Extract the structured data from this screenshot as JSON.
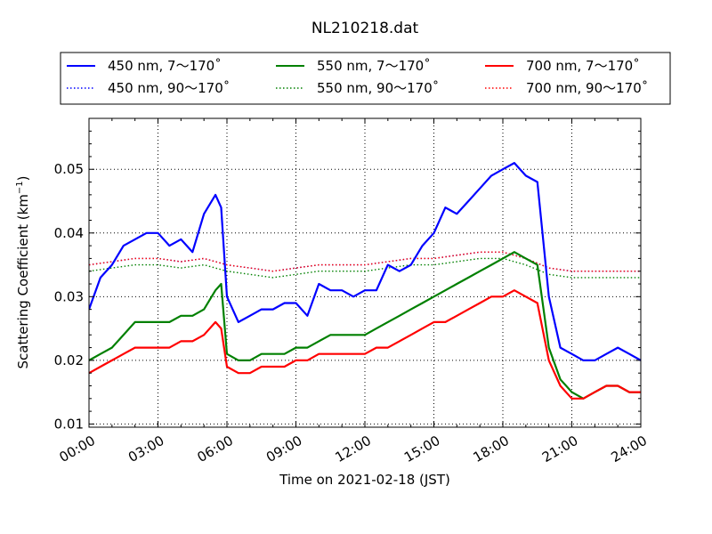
{
  "chart_data": {
    "type": "line",
    "title": "NL210218.dat",
    "xlabel": "Time on 2021-02-18 (JST)",
    "ylabel_main": "Scattering Coefficient (km",
    "ylabel_sup": "−1",
    "ylabel_close": ")",
    "xlim_hours": [
      0,
      24
    ],
    "ylim": [
      0.0095,
      0.058
    ],
    "x_ticks": [
      {
        "hour": 0,
        "label": "00:00"
      },
      {
        "hour": 3,
        "label": "03:00"
      },
      {
        "hour": 6,
        "label": "06:00"
      },
      {
        "hour": 9,
        "label": "09:00"
      },
      {
        "hour": 12,
        "label": "12:00"
      },
      {
        "hour": 15,
        "label": "15:00"
      },
      {
        "hour": 18,
        "label": "18:00"
      },
      {
        "hour": 21,
        "label": "21:00"
      },
      {
        "hour": 24,
        "label": "24:00"
      }
    ],
    "y_ticks": [
      {
        "value": 0.01,
        "label": "0.01"
      },
      {
        "value": 0.02,
        "label": "0.02"
      },
      {
        "value": 0.03,
        "label": "0.03"
      },
      {
        "value": 0.04,
        "label": "0.04"
      },
      {
        "value": 0.05,
        "label": "0.05"
      }
    ],
    "grid": true,
    "legend_position": "top",
    "legend_columns": 3,
    "series": [
      {
        "name": "450 nm, 7～170˚",
        "color": "#0000ff",
        "style": "solid",
        "x": [
          0,
          0.5,
          1,
          1.5,
          2,
          2.5,
          3,
          3.5,
          4,
          4.5,
          5,
          5.5,
          5.75,
          6,
          6.5,
          7,
          7.5,
          8,
          8.5,
          9,
          9.5,
          10,
          10.5,
          11,
          11.5,
          12,
          12.5,
          13,
          13.5,
          14,
          14.5,
          15,
          15.5,
          16,
          16.5,
          17,
          17.5,
          18,
          18.5,
          19,
          19.5,
          20,
          20.5,
          21,
          21.5,
          22,
          22.5,
          23,
          23.5,
          24
        ],
        "y": [
          0.028,
          0.033,
          0.035,
          0.038,
          0.039,
          0.04,
          0.04,
          0.038,
          0.039,
          0.037,
          0.043,
          0.046,
          0.044,
          0.03,
          0.026,
          0.027,
          0.028,
          0.028,
          0.029,
          0.029,
          0.027,
          0.032,
          0.031,
          0.031,
          0.03,
          0.031,
          0.031,
          0.035,
          0.034,
          0.035,
          0.038,
          0.04,
          0.044,
          0.043,
          0.045,
          0.047,
          0.049,
          0.05,
          0.051,
          0.049,
          0.048,
          0.03,
          0.022,
          0.021,
          0.02,
          0.02,
          0.021,
          0.022,
          0.021,
          0.02
        ]
      },
      {
        "name": "450 nm, 90～170˚",
        "color": "#0000ff",
        "style": "dotted",
        "x": [
          0,
          1,
          2,
          3,
          4,
          5,
          6,
          7,
          8,
          9,
          10,
          11,
          12,
          13,
          14,
          15,
          16,
          17,
          18,
          19,
          20,
          21,
          22,
          23,
          24
        ],
        "y": [
          0.035,
          0.0355,
          0.036,
          0.036,
          0.0355,
          0.036,
          0.035,
          0.0345,
          0.034,
          0.0345,
          0.035,
          0.035,
          0.035,
          0.0355,
          0.036,
          0.036,
          0.0365,
          0.037,
          0.037,
          0.036,
          0.0345,
          0.034,
          0.034,
          0.034,
          0.034
        ]
      },
      {
        "name": "550 nm, 7～170˚",
        "color": "#008000",
        "style": "solid",
        "x": [
          0,
          0.5,
          1,
          1.5,
          2,
          2.5,
          3,
          3.5,
          4,
          4.5,
          5,
          5.5,
          5.75,
          6,
          6.5,
          7,
          7.5,
          8,
          8.5,
          9,
          9.5,
          10,
          10.5,
          11,
          11.5,
          12,
          12.5,
          13,
          13.5,
          14,
          14.5,
          15,
          15.5,
          16,
          16.5,
          17,
          17.5,
          18,
          18.5,
          19,
          19.5,
          20,
          20.5,
          21,
          21.5,
          22,
          22.5,
          23,
          23.5,
          24
        ],
        "y": [
          0.02,
          0.021,
          0.022,
          0.024,
          0.026,
          0.026,
          0.026,
          0.026,
          0.027,
          0.027,
          0.028,
          0.031,
          0.032,
          0.021,
          0.02,
          0.02,
          0.021,
          0.021,
          0.021,
          0.022,
          0.022,
          0.023,
          0.024,
          0.024,
          0.024,
          0.024,
          0.025,
          0.026,
          0.027,
          0.028,
          0.029,
          0.03,
          0.031,
          0.032,
          0.033,
          0.034,
          0.035,
          0.036,
          0.037,
          0.036,
          0.035,
          0.022,
          0.017,
          0.015,
          0.014,
          0.015,
          0.016,
          0.016,
          0.015,
          0.015
        ]
      },
      {
        "name": "550 nm, 90～170˚",
        "color": "#008000",
        "style": "dotted",
        "x": [
          0,
          1,
          2,
          3,
          4,
          5,
          6,
          7,
          8,
          9,
          10,
          11,
          12,
          13,
          14,
          15,
          16,
          17,
          18,
          19,
          20,
          21,
          22,
          23,
          24
        ],
        "y": [
          0.034,
          0.0345,
          0.035,
          0.035,
          0.0345,
          0.035,
          0.034,
          0.0335,
          0.033,
          0.0335,
          0.034,
          0.034,
          0.034,
          0.0345,
          0.035,
          0.035,
          0.0355,
          0.036,
          0.036,
          0.035,
          0.0335,
          0.033,
          0.033,
          0.033,
          0.033
        ]
      },
      {
        "name": "700 nm, 7～170˚",
        "color": "#ff0000",
        "style": "solid",
        "x": [
          0,
          0.5,
          1,
          1.5,
          2,
          2.5,
          3,
          3.5,
          4,
          4.5,
          5,
          5.5,
          5.75,
          6,
          6.5,
          7,
          7.5,
          8,
          8.5,
          9,
          9.5,
          10,
          10.5,
          11,
          11.5,
          12,
          12.5,
          13,
          13.5,
          14,
          14.5,
          15,
          15.5,
          16,
          16.5,
          17,
          17.5,
          18,
          18.5,
          19,
          19.5,
          20,
          20.5,
          21,
          21.5,
          22,
          22.5,
          23,
          23.5,
          24
        ],
        "y": [
          0.018,
          0.019,
          0.02,
          0.021,
          0.022,
          0.022,
          0.022,
          0.022,
          0.023,
          0.023,
          0.024,
          0.026,
          0.025,
          0.019,
          0.018,
          0.018,
          0.019,
          0.019,
          0.019,
          0.02,
          0.02,
          0.021,
          0.021,
          0.021,
          0.021,
          0.021,
          0.022,
          0.022,
          0.023,
          0.024,
          0.025,
          0.026,
          0.026,
          0.027,
          0.028,
          0.029,
          0.03,
          0.03,
          0.031,
          0.03,
          0.029,
          0.02,
          0.016,
          0.014,
          0.014,
          0.015,
          0.016,
          0.016,
          0.015,
          0.015
        ]
      },
      {
        "name": "700 nm, 90～170˚",
        "color": "#ff0000",
        "style": "dotted",
        "x": [
          0,
          1,
          2,
          3,
          4,
          5,
          6,
          7,
          8,
          9,
          10,
          11,
          12,
          13,
          14,
          15,
          16,
          17,
          18,
          19,
          20,
          21,
          22,
          23,
          24
        ],
        "y": [
          0.035,
          0.0355,
          0.036,
          0.036,
          0.0355,
          0.036,
          0.035,
          0.0345,
          0.034,
          0.0345,
          0.035,
          0.035,
          0.035,
          0.0355,
          0.036,
          0.036,
          0.0365,
          0.037,
          0.037,
          0.036,
          0.0345,
          0.034,
          0.034,
          0.034,
          0.034
        ]
      }
    ]
  }
}
